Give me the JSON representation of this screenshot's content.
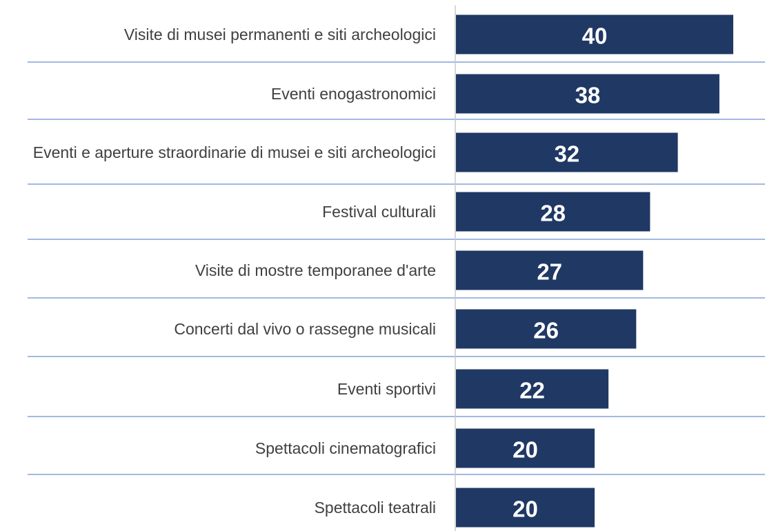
{
  "chart_data": {
    "type": "bar",
    "orientation": "horizontal",
    "categories": [
      "Visite di musei permanenti e siti archeologici",
      "Eventi enogastronomici",
      "Eventi e aperture straordinarie di musei e siti archeologici",
      "Festival culturali",
      "Visite di mostre temporanee d'arte",
      "Concerti dal vivo o rassegne musicali",
      "Eventi sportivi",
      "Spettacoli cinematografici",
      "Spettacoli teatrali"
    ],
    "values": [
      40,
      38,
      32,
      28,
      27,
      26,
      22,
      20,
      20
    ],
    "color": "#203864"
  }
}
